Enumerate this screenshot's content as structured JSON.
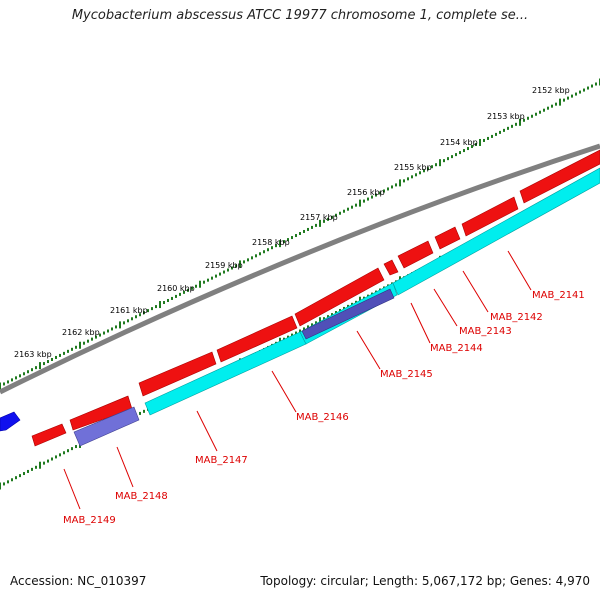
{
  "title": "Mycobacterium abscessus ATCC 19977 chromosome 1, complete se...",
  "footer": {
    "accession": "Accession: NC_010397",
    "summary": "Topology: circular; Length: 5,067,172 bp; Genes: 4,970"
  },
  "colors": {
    "backbone": "#808080",
    "ticks": "#1f7a1f",
    "forward_gene": "#ee1111",
    "reverse_gene": "#00eeee",
    "reverse_gene_alt": "#5050b8",
    "gene_label": "#dd0000",
    "other_strand": "#1010ee"
  },
  "scale_labels": [
    {
      "text": "2152 kbp"
    },
    {
      "text": "2153 kbp"
    },
    {
      "text": "2154 kbp"
    },
    {
      "text": "2155 kbp"
    },
    {
      "text": "2156 kbp"
    },
    {
      "text": "2157 kbp"
    },
    {
      "text": "2158 kbp"
    },
    {
      "text": "2159 kbp"
    },
    {
      "text": "2160 kbp"
    },
    {
      "text": "2161 kbp"
    },
    {
      "text": "2162 kbp"
    },
    {
      "text": "2163 kbp"
    }
  ],
  "gene_labels": [
    {
      "name": "MAB_2141"
    },
    {
      "name": "MAB_2142"
    },
    {
      "name": "MAB_2143"
    },
    {
      "name": "MAB_2144"
    },
    {
      "name": "MAB_2145"
    },
    {
      "name": "MAB_2146"
    },
    {
      "name": "MAB_2147"
    },
    {
      "name": "MAB_2148"
    },
    {
      "name": "MAB_2149"
    }
  ]
}
